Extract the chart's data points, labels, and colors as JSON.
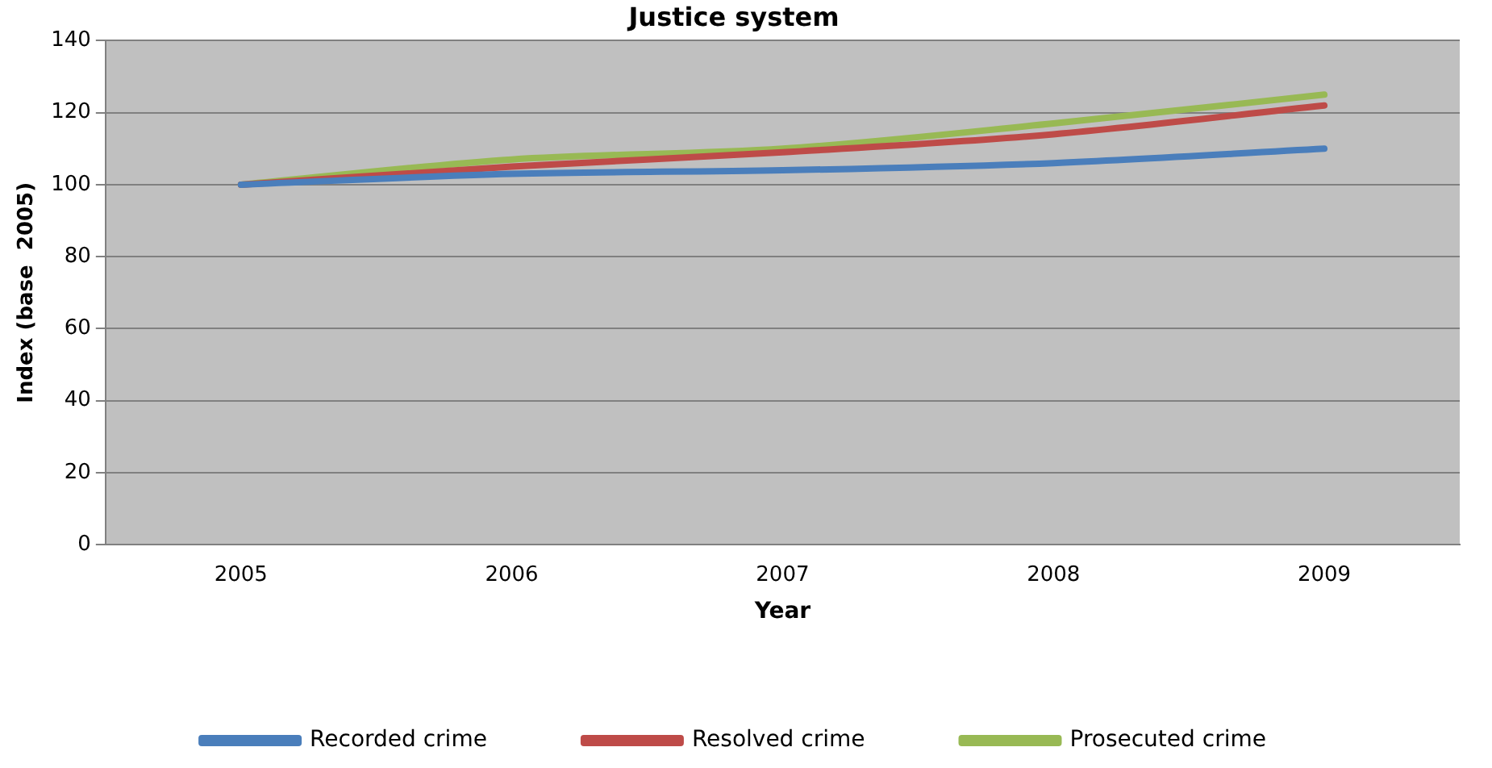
{
  "chart_data": {
    "type": "line",
    "title": "Justice system",
    "xlabel": "Year",
    "ylabel": "Index (base  2005)",
    "categories": [
      "2005",
      "2006",
      "2007",
      "2008",
      "2009"
    ],
    "series": [
      {
        "name": "Recorded crime",
        "color": "#4a7ebb",
        "values": [
          100,
          103,
          104,
          106,
          110
        ]
      },
      {
        "name": "Resolved crime",
        "color": "#be4b48",
        "values": [
          100,
          105,
          109,
          114,
          122
        ]
      },
      {
        "name": "Prosecuted crime",
        "color": "#98b954",
        "values": [
          100,
          107,
          110,
          117,
          125
        ]
      }
    ],
    "ylim": [
      0,
      140
    ],
    "yticks": [
      0,
      20,
      40,
      60,
      80,
      100,
      120,
      140
    ],
    "grid": "y",
    "legend": "bottom",
    "marker": "none",
    "line_style": "solid"
  }
}
